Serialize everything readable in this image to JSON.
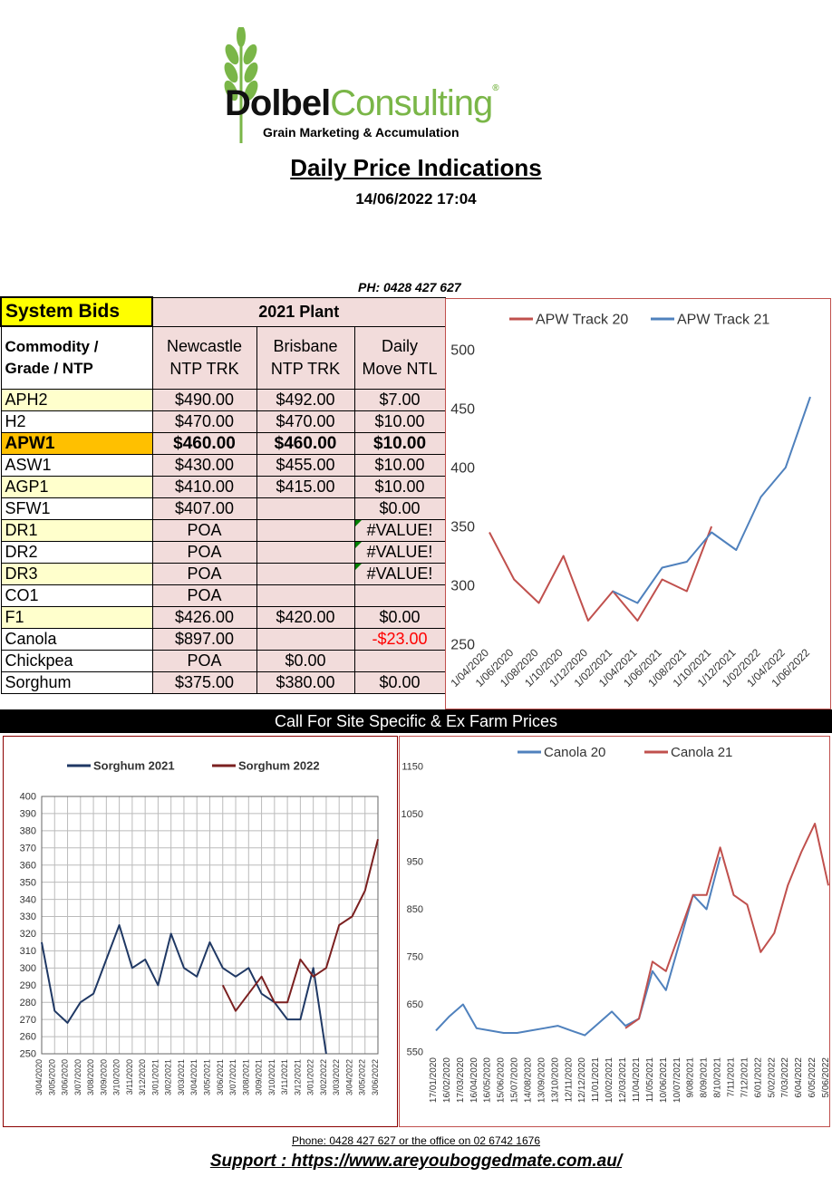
{
  "header": {
    "logo_word1": "Dolbel",
    "logo_word2": "Consulting",
    "logo_mark": "®",
    "logo_tagline": "Grain Marketing & Accumulation",
    "title": "Daily Price Indications",
    "timestamp": "14/06/2022 17:04",
    "phone": "PH: 0428 427 627"
  },
  "table": {
    "system_bids": "System Bids",
    "plant": "2021 Plant",
    "col0": [
      "Commodity /",
      "Grade / NTP"
    ],
    "col1": [
      "Newcastle",
      "NTP TRK"
    ],
    "col2": [
      "Brisbane",
      "NTP TRK"
    ],
    "col3": [
      "Daily",
      "Move NTL"
    ],
    "rows": [
      {
        "grade": "APH2",
        "newcastle": "$490.00",
        "brisbane": "$492.00",
        "move": "$7.00"
      },
      {
        "grade": "H2",
        "newcastle": "$470.00",
        "brisbane": "$470.00",
        "move": "$10.00"
      },
      {
        "grade": "APW1",
        "newcastle": "$460.00",
        "brisbane": "$460.00",
        "move": "$10.00"
      },
      {
        "grade": "ASW1",
        "newcastle": "$430.00",
        "brisbane": "$455.00",
        "move": "$10.00"
      },
      {
        "grade": "AGP1",
        "newcastle": "$410.00",
        "brisbane": "$415.00",
        "move": "$10.00"
      },
      {
        "grade": "SFW1",
        "newcastle": "$407.00",
        "brisbane": "",
        "move": "$0.00"
      },
      {
        "grade": "DR1",
        "newcastle": "POA",
        "brisbane": "",
        "move": "#VALUE!"
      },
      {
        "grade": "DR2",
        "newcastle": "POA",
        "brisbane": "",
        "move": "#VALUE!"
      },
      {
        "grade": "DR3",
        "newcastle": "POA",
        "brisbane": "",
        "move": "#VALUE!"
      },
      {
        "grade": "CO1",
        "newcastle": "POA",
        "brisbane": "",
        "move": ""
      },
      {
        "grade": "F1",
        "newcastle": "$426.00",
        "brisbane": "$420.00",
        "move": "$0.00"
      },
      {
        "grade": "Canola",
        "newcastle": "$897.00",
        "brisbane": "",
        "move": "-$23.00"
      },
      {
        "grade": "Chickpea",
        "newcastle": "POA",
        "brisbane": "$0.00",
        "move": ""
      },
      {
        "grade": "Sorghum",
        "newcastle": "$375.00",
        "brisbane": "$380.00",
        "move": "$0.00"
      }
    ],
    "negative_color": "#ff0000",
    "apw_highlight": "#ffc000"
  },
  "callbar": "Call For Site Specific & Ex Farm Prices",
  "footer": {
    "phone_line": "Phone: 0428 427 627 or the office on 02 6742 1676",
    "support": "Support : https://www.areyouboggedmate.com.au/"
  },
  "chart_data": [
    {
      "type": "line",
      "legend_position": "top",
      "ylim": [
        250,
        500
      ],
      "yticks": [
        250,
        300,
        350,
        400,
        450,
        500
      ],
      "xticks": [
        "1/04/2020",
        "1/06/2020",
        "1/08/2020",
        "1/10/2020",
        "1/12/2020",
        "1/02/2021",
        "1/04/2021",
        "1/06/2021",
        "1/08/2021",
        "1/10/2021",
        "1/12/2021",
        "1/02/2022",
        "1/04/2022",
        "1/06/2022"
      ],
      "grid": false,
      "series": [
        {
          "name": "APW Track 20",
          "color": "#c0504d",
          "x": [
            "1/04/2020",
            "1/06/2020",
            "1/08/2020",
            "1/10/2020",
            "1/12/2020",
            "1/02/2021",
            "1/04/2021",
            "1/06/2021",
            "1/08/2021",
            "1/10/2021"
          ],
          "values": [
            345,
            305,
            285,
            325,
            270,
            295,
            270,
            305,
            295,
            350
          ]
        },
        {
          "name": "APW Track 21",
          "color": "#4f81bd",
          "x": [
            "1/02/2021",
            "1/04/2021",
            "1/06/2021",
            "1/08/2021",
            "1/10/2021",
            "1/12/2021",
            "1/02/2022",
            "1/04/2022",
            "1/06/2022"
          ],
          "values": [
            295,
            285,
            315,
            320,
            345,
            330,
            375,
            400,
            460
          ]
        }
      ]
    },
    {
      "type": "line",
      "legend_position": "top",
      "ylim": [
        250,
        400
      ],
      "yticks": [
        250,
        260,
        270,
        280,
        290,
        300,
        310,
        320,
        330,
        340,
        350,
        360,
        370,
        380,
        390,
        400
      ],
      "xticks": [
        "3/04/2020",
        "3/05/2020",
        "3/06/2020",
        "3/07/2020",
        "3/08/2020",
        "3/09/2020",
        "3/10/2020",
        "3/11/2020",
        "3/12/2020",
        "3/01/2021",
        "3/02/2021",
        "3/03/2021",
        "3/04/2021",
        "3/05/2021",
        "3/06/2021",
        "3/07/2021",
        "3/08/2021",
        "3/09/2021",
        "3/10/2021",
        "3/11/2021",
        "3/12/2021",
        "3/01/2022",
        "3/02/2022",
        "3/03/2022",
        "3/04/2022",
        "3/05/2022",
        "3/06/2022"
      ],
      "grid": true,
      "series": [
        {
          "name": "Sorghum 2021",
          "color": "#1f3864",
          "x": [
            "3/04/2020",
            "3/05/2020",
            "3/06/2020",
            "3/07/2020",
            "3/08/2020",
            "3/09/2020",
            "3/10/2020",
            "3/11/2020",
            "3/12/2020",
            "3/01/2021",
            "3/02/2021",
            "3/03/2021",
            "3/04/2021",
            "3/05/2021",
            "3/06/2021",
            "3/07/2021",
            "3/08/2021",
            "3/09/2021",
            "3/10/2021",
            "3/11/2021",
            "3/12/2021",
            "3/01/2022",
            "3/02/2022"
          ],
          "values": [
            315,
            275,
            268,
            280,
            285,
            305,
            325,
            300,
            305,
            290,
            320,
            300,
            295,
            315,
            300,
            295,
            300,
            285,
            280,
            270,
            270,
            300,
            250
          ]
        },
        {
          "name": "Sorghum 2022",
          "color": "#7b2020",
          "x": [
            "3/06/2021",
            "3/07/2021",
            "3/08/2021",
            "3/09/2021",
            "3/10/2021",
            "3/11/2021",
            "3/12/2021",
            "3/01/2022",
            "3/02/2022",
            "3/03/2022",
            "3/04/2022",
            "3/05/2022",
            "3/06/2022"
          ],
          "values": [
            290,
            275,
            285,
            295,
            280,
            280,
            305,
            295,
            300,
            325,
            330,
            345,
            375
          ]
        }
      ]
    },
    {
      "type": "line",
      "legend_position": "top",
      "ylim": [
        550,
        1150
      ],
      "yticks": [
        550,
        650,
        750,
        850,
        950,
        1050,
        1150
      ],
      "xticks": [
        "17/01/2020",
        "16/02/2020",
        "17/03/2020",
        "16/04/2020",
        "16/05/2020",
        "15/06/2020",
        "15/07/2020",
        "14/08/2020",
        "13/09/2020",
        "13/10/2020",
        "12/11/2020",
        "12/12/2020",
        "11/01/2021",
        "10/02/2021",
        "12/03/2021",
        "11/04/2021",
        "11/05/2021",
        "10/06/2021",
        "10/07/2021",
        "9/08/2021",
        "8/09/2021",
        "8/10/2021",
        "7/11/2021",
        "7/12/2021",
        "6/01/2022",
        "5/02/2022",
        "7/03/2022",
        "6/04/2022",
        "6/05/2022",
        "5/06/2022"
      ],
      "grid": false,
      "series": [
        {
          "name": "Canola 20",
          "color": "#4f81bd",
          "x": [
            "17/01/2020",
            "16/02/2020",
            "17/03/2020",
            "16/04/2020",
            "16/05/2020",
            "15/06/2020",
            "15/07/2020",
            "14/08/2020",
            "13/09/2020",
            "13/10/2020",
            "12/11/2020",
            "12/12/2020",
            "11/01/2021",
            "10/02/2021",
            "12/03/2021",
            "11/04/2021",
            "11/05/2021",
            "10/06/2021",
            "10/07/2021",
            "9/08/2021",
            "8/09/2021",
            "8/10/2021"
          ],
          "values": [
            595,
            625,
            650,
            600,
            595,
            590,
            590,
            595,
            600,
            605,
            595,
            585,
            610,
            635,
            605,
            620,
            720,
            680,
            780,
            880,
            850,
            960
          ]
        },
        {
          "name": "Canola 21",
          "color": "#c0504d",
          "x": [
            "12/03/2021",
            "11/04/2021",
            "11/05/2021",
            "10/06/2021",
            "10/07/2021",
            "9/08/2021",
            "8/09/2021",
            "8/10/2021",
            "7/11/2021",
            "7/12/2021",
            "6/01/2022",
            "5/02/2022",
            "7/03/2022",
            "6/04/2022",
            "6/05/2022",
            "5/06/2022"
          ],
          "values": [
            600,
            620,
            740,
            720,
            800,
            880,
            880,
            980,
            880,
            860,
            760,
            800,
            900,
            970,
            1030,
            900
          ]
        }
      ]
    }
  ]
}
